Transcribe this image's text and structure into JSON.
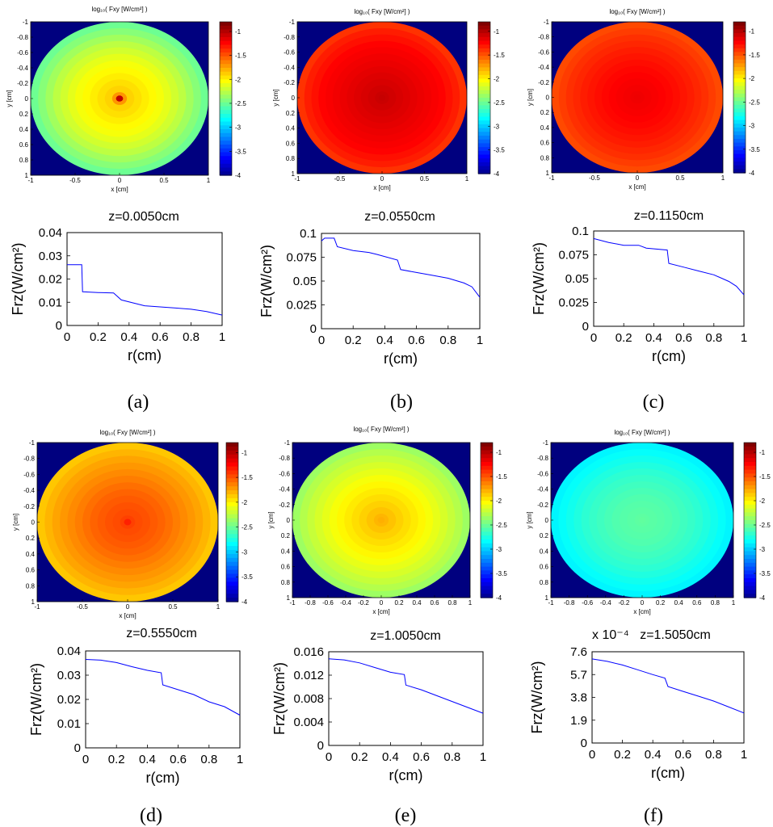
{
  "colormap_title": "log₁₀( Fxy [W/cm²] )",
  "colorbar_ticks": [
    "-1",
    "-1.5",
    "-2",
    "-2.5",
    "-3",
    "-3.5",
    "-4"
  ],
  "map_x_label": "x [cm]",
  "map_y_label": "y [cm]",
  "colors": {
    "background": "#00007f",
    "line": "#0000ff"
  },
  "chart_data": [
    {
      "type": "heatmap",
      "panel_label": "(a)",
      "title": "log₁₀( Fxy [W/cm²] )",
      "xlabel": "x [cm]",
      "ylabel": "y [cm]",
      "xticks": [
        "-1",
        "-0.5",
        "0",
        "0.5",
        "1"
      ],
      "yticks": [
        "-1",
        "-0.8",
        "-0.6",
        "-0.4",
        "-0.2",
        "0",
        "0.2",
        "0.4",
        "0.6",
        "0.8",
        "1"
      ],
      "clim": [
        -4,
        -0.8
      ],
      "radial_log_profile": [
        [
          0,
          -1.0
        ],
        [
          0.05,
          -1.8
        ],
        [
          0.1,
          -1.85
        ],
        [
          0.3,
          -1.95
        ],
        [
          0.5,
          -2.05
        ],
        [
          0.7,
          -2.2
        ],
        [
          0.9,
          -2.4
        ],
        [
          1.0,
          -2.5
        ]
      ]
    },
    {
      "type": "line",
      "panel_label": "(a)",
      "title": "z=0.0050cm",
      "xlabel": "r(cm)",
      "ylabel": "Frz(W/cm²)",
      "xlim": [
        0,
        1
      ],
      "ylim": [
        0,
        0.04
      ],
      "xticks": [
        "0",
        "0.2",
        "0.4",
        "0.6",
        "0.8",
        "1"
      ],
      "yticks": [
        "0",
        "0.01",
        "0.02",
        "0.03",
        "0.04"
      ],
      "x": [
        0,
        0.095,
        0.1,
        0.2,
        0.3,
        0.35,
        0.5,
        0.6,
        0.7,
        0.8,
        0.9,
        1.0
      ],
      "y": [
        0.0262,
        0.0262,
        0.0145,
        0.0142,
        0.014,
        0.011,
        0.0085,
        0.008,
        0.0075,
        0.007,
        0.006,
        0.0045
      ]
    },
    {
      "type": "heatmap",
      "panel_label": "(b)",
      "title": "log₁₀( Fxy [W/cm²] )",
      "xlabel": "x [cm]",
      "ylabel": "y [cm]",
      "xticks": [
        "-1",
        "-0.5",
        "0",
        "0.5",
        "1"
      ],
      "yticks": [
        "-1",
        "-0.8",
        "-0.6",
        "-0.4",
        "-0.2",
        "0",
        "0.2",
        "0.4",
        "0.6",
        "0.8",
        "1"
      ],
      "clim": [
        -4,
        -0.8
      ],
      "radial_log_profile": [
        [
          0,
          -1.02
        ],
        [
          0.1,
          -1.05
        ],
        [
          0.3,
          -1.1
        ],
        [
          0.5,
          -1.15
        ],
        [
          0.7,
          -1.2
        ],
        [
          0.9,
          -1.3
        ],
        [
          1.0,
          -1.4
        ]
      ]
    },
    {
      "type": "line",
      "panel_label": "(b)",
      "title": "z=0.0550cm",
      "xlabel": "r(cm)",
      "ylabel": "Frz(W/cm²)",
      "xlim": [
        0,
        1
      ],
      "ylim": [
        0,
        0.1
      ],
      "xticks": [
        "0",
        "0.2",
        "0.4",
        "0.6",
        "0.8",
        "1"
      ],
      "yticks": [
        "0",
        "0.025",
        "0.05",
        "0.075",
        "0.1"
      ],
      "x": [
        0,
        0.02,
        0.08,
        0.1,
        0.2,
        0.3,
        0.35,
        0.48,
        0.5,
        0.6,
        0.7,
        0.8,
        0.9,
        0.95,
        1.0
      ],
      "y": [
        0.092,
        0.095,
        0.095,
        0.086,
        0.082,
        0.08,
        0.078,
        0.072,
        0.062,
        0.059,
        0.056,
        0.053,
        0.048,
        0.044,
        0.033
      ]
    },
    {
      "type": "heatmap",
      "panel_label": "(c)",
      "title": "log₁₀( Fxy [W/cm²] )",
      "xlabel": "x [cm]",
      "ylabel": "y [cm]",
      "xticks": [
        "-1",
        "-0.5",
        "0",
        "0.5",
        "1"
      ],
      "yticks": [
        "-1",
        "-0.8",
        "-0.6",
        "-0.4",
        "-0.2",
        "0",
        "0.2",
        "0.4",
        "0.6",
        "0.8",
        "1"
      ],
      "clim": [
        -4,
        -0.8
      ],
      "radial_log_profile": [
        [
          0,
          -1.15
        ],
        [
          0.2,
          -1.18
        ],
        [
          0.4,
          -1.22
        ],
        [
          0.6,
          -1.28
        ],
        [
          0.8,
          -1.35
        ],
        [
          1.0,
          -1.45
        ]
      ]
    },
    {
      "type": "line",
      "panel_label": "(c)",
      "title": "z=0.1150cm",
      "xlabel": "r(cm)",
      "ylabel": "Frz(W/cm²)",
      "xlim": [
        0,
        1
      ],
      "ylim": [
        0,
        0.1
      ],
      "xticks": [
        "0",
        "0.2",
        "0.4",
        "0.6",
        "0.8",
        "1"
      ],
      "yticks": [
        "0",
        "0.025",
        "0.05",
        "0.075",
        "0.1"
      ],
      "x": [
        0,
        0.1,
        0.2,
        0.3,
        0.35,
        0.49,
        0.5,
        0.6,
        0.7,
        0.8,
        0.9,
        0.95,
        1.0
      ],
      "y": [
        0.092,
        0.088,
        0.085,
        0.085,
        0.082,
        0.08,
        0.066,
        0.062,
        0.058,
        0.054,
        0.047,
        0.042,
        0.033
      ]
    },
    {
      "type": "heatmap",
      "panel_label": "(d)",
      "title": "log₁₀( Fxy [W/cm²] )",
      "xlabel": "x [cm]",
      "ylabel": "y [cm]",
      "xticks": [
        "-1",
        "-0.5",
        "0",
        "0.5",
        "1"
      ],
      "yticks": [
        "-1",
        "-0.8",
        "-0.6",
        "-0.4",
        "-0.2",
        "0",
        "0.2",
        "0.4",
        "0.6",
        "0.8",
        "1"
      ],
      "clim": [
        -4,
        -0.8
      ],
      "radial_log_profile": [
        [
          0,
          -1.3
        ],
        [
          0.05,
          -1.42
        ],
        [
          0.2,
          -1.45
        ],
        [
          0.4,
          -1.52
        ],
        [
          0.6,
          -1.62
        ],
        [
          0.8,
          -1.72
        ],
        [
          1.0,
          -1.85
        ]
      ]
    },
    {
      "type": "line",
      "panel_label": "(d)",
      "title": "z=0.5550cm",
      "xlabel": "r(cm)",
      "ylabel": "Frz(W/cm²)",
      "xlim": [
        0,
        1
      ],
      "ylim": [
        0,
        0.04
      ],
      "xticks": [
        "0",
        "0.2",
        "0.4",
        "0.6",
        "0.8",
        "1"
      ],
      "yticks": [
        "0",
        "0.01",
        "0.02",
        "0.03",
        "0.04"
      ],
      "x": [
        0,
        0.1,
        0.2,
        0.3,
        0.4,
        0.49,
        0.5,
        0.6,
        0.7,
        0.8,
        0.9,
        1.0
      ],
      "y": [
        0.0365,
        0.0362,
        0.0352,
        0.0335,
        0.032,
        0.031,
        0.026,
        0.024,
        0.022,
        0.019,
        0.017,
        0.0135
      ]
    },
    {
      "type": "heatmap",
      "panel_label": "(e)",
      "title": "log₁₀( Fxy [W/cm²] )",
      "xlabel": "x [cm]",
      "ylabel": "y [cm]",
      "xticks": [
        "-1",
        "-0.8",
        "-0.6",
        "-0.4",
        "-0.2",
        "0",
        "0.2",
        "0.4",
        "0.6",
        "0.8",
        "1"
      ],
      "yticks": [
        "-1",
        "-0.8",
        "-0.6",
        "-0.4",
        "-0.2",
        "0",
        "0.2",
        "0.4",
        "0.6",
        "0.8",
        "1"
      ],
      "clim": [
        -4,
        -0.8
      ],
      "radial_log_profile": [
        [
          0,
          -1.75
        ],
        [
          0.1,
          -1.8
        ],
        [
          0.3,
          -1.9
        ],
        [
          0.5,
          -2.0
        ],
        [
          0.7,
          -2.12
        ],
        [
          0.9,
          -2.25
        ],
        [
          1.0,
          -2.35
        ]
      ]
    },
    {
      "type": "line",
      "panel_label": "(e)",
      "title": "z=1.0050cm",
      "xlabel": "r(cm)",
      "ylabel": "Frz(W/cm²)",
      "xlim": [
        0,
        1
      ],
      "ylim": [
        0,
        0.016
      ],
      "xticks": [
        "0",
        "0.2",
        "0.4",
        "0.6",
        "0.8",
        "1"
      ],
      "yticks": [
        "0",
        "0.004",
        "0.008",
        "0.012",
        "0.016"
      ],
      "x": [
        0,
        0.1,
        0.2,
        0.3,
        0.4,
        0.49,
        0.5,
        0.6,
        0.7,
        0.8,
        0.9,
        1.0
      ],
      "y": [
        0.0148,
        0.0146,
        0.0141,
        0.0133,
        0.0125,
        0.0121,
        0.0103,
        0.0095,
        0.0085,
        0.0075,
        0.0065,
        0.0055
      ]
    },
    {
      "type": "heatmap",
      "panel_label": "(f)",
      "title": "log₁₀( Fxy [W/cm²] )",
      "xlabel": "x [cm]",
      "ylabel": "y [cm]",
      "xticks": [
        "-1",
        "-0.8",
        "-0.6",
        "-0.4",
        "-0.2",
        "0",
        "0.2",
        "0.4",
        "0.6",
        "0.8",
        "1"
      ],
      "yticks": [
        "-1",
        "-0.8",
        "-0.6",
        "-0.4",
        "-0.2",
        "0",
        "0.2",
        "0.4",
        "0.6",
        "0.8",
        "1"
      ],
      "clim": [
        -4,
        -0.8
      ],
      "radial_log_profile": [
        [
          0,
          -2.5
        ],
        [
          0.3,
          -2.55
        ],
        [
          0.6,
          -2.65
        ],
        [
          0.8,
          -2.75
        ],
        [
          1.0,
          -2.85
        ]
      ]
    },
    {
      "type": "line",
      "panel_label": "(f)",
      "title": "z=1.5050cm",
      "exponent_label": "x 10⁻⁴",
      "xlabel": "r(cm)",
      "ylabel": "Frz(W/cm²)",
      "xlim": [
        0,
        1
      ],
      "ylim": [
        0,
        7.6
      ],
      "xticks": [
        "0",
        "0.2",
        "0.4",
        "0.6",
        "0.8",
        "1"
      ],
      "yticks": [
        "0",
        "1.9",
        "3.8",
        "5.7",
        "7.6"
      ],
      "x": [
        0,
        0.1,
        0.2,
        0.3,
        0.4,
        0.48,
        0.5,
        0.6,
        0.7,
        0.8,
        0.9,
        1.0
      ],
      "y": [
        7.0,
        6.8,
        6.5,
        6.1,
        5.7,
        5.4,
        4.7,
        4.3,
        3.9,
        3.5,
        3.0,
        2.5
      ]
    }
  ]
}
